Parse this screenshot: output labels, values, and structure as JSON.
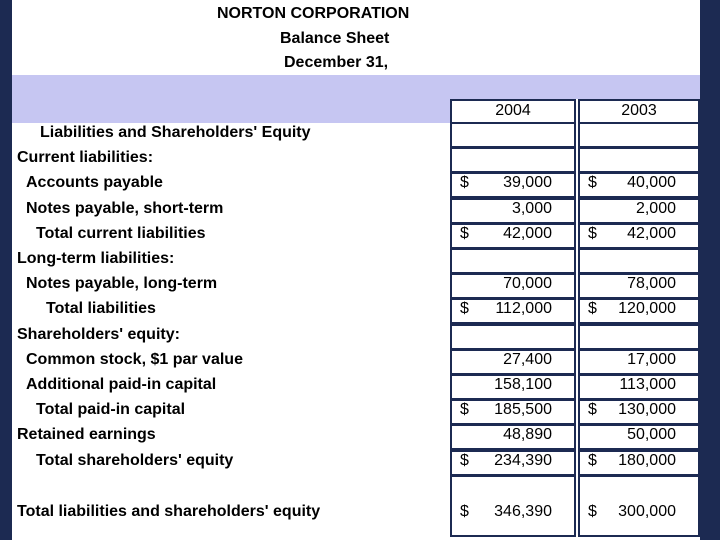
{
  "header": {
    "company": "NORTON CORPORATION",
    "statement": "Balance Sheet",
    "date": "December 31,"
  },
  "columns": [
    "2004",
    "2003"
  ],
  "rows": [
    {
      "label": "Liabilities and Shareholders' Equity",
      "cells": [
        null,
        null
      ]
    },
    {
      "label": "Current liabilities:",
      "cells": [
        null,
        null
      ]
    },
    {
      "label": "Accounts payable",
      "cells": [
        {
          "sign": "$",
          "amount": "39,000"
        },
        {
          "sign": "$",
          "amount": "40,000"
        }
      ]
    },
    {
      "label": "Notes payable, short-term",
      "cells": [
        {
          "amount": "3,000"
        },
        {
          "amount": "2,000"
        }
      ]
    },
    {
      "label": "Total current liabilities",
      "cells": [
        {
          "sign": "$",
          "amount": "42,000"
        },
        {
          "sign": "$",
          "amount": "42,000"
        }
      ]
    },
    {
      "label": "Long-term liabilities:",
      "cells": [
        null,
        null
      ]
    },
    {
      "label": "Notes payable, long-term",
      "cells": [
        {
          "amount": "70,000"
        },
        {
          "amount": "78,000"
        }
      ]
    },
    {
      "label": "Total liabilities",
      "cells": [
        {
          "sign": "$",
          "amount": "112,000"
        },
        {
          "sign": "$",
          "amount": "120,000"
        }
      ]
    },
    {
      "label": "Shareholders' equity:",
      "cells": [
        null,
        null
      ]
    },
    {
      "label": "Common stock, $1 par value",
      "cells": [
        {
          "amount": "27,400"
        },
        {
          "amount": "17,000"
        }
      ]
    },
    {
      "label": "Additional paid-in capital",
      "cells": [
        {
          "amount": "158,100"
        },
        {
          "amount": "113,000"
        }
      ]
    },
    {
      "label": "Total paid-in capital",
      "cells": [
        {
          "sign": "$",
          "amount": "185,500"
        },
        {
          "sign": "$",
          "amount": "130,000"
        }
      ]
    },
    {
      "label": "Retained earnings",
      "cells": [
        {
          "amount": "48,890"
        },
        {
          "amount": "50,000"
        }
      ]
    },
    {
      "label": "Total shareholders' equity",
      "cells": [
        {
          "sign": "$",
          "amount": "234,390"
        },
        {
          "sign": "$",
          "amount": "180,000"
        }
      ]
    },
    {
      "label": "Total liabilities and shareholders' equity",
      "cells": [
        {
          "sign": "$",
          "amount": "346,390"
        },
        {
          "sign": "$",
          "amount": "300,000"
        }
      ]
    }
  ]
}
